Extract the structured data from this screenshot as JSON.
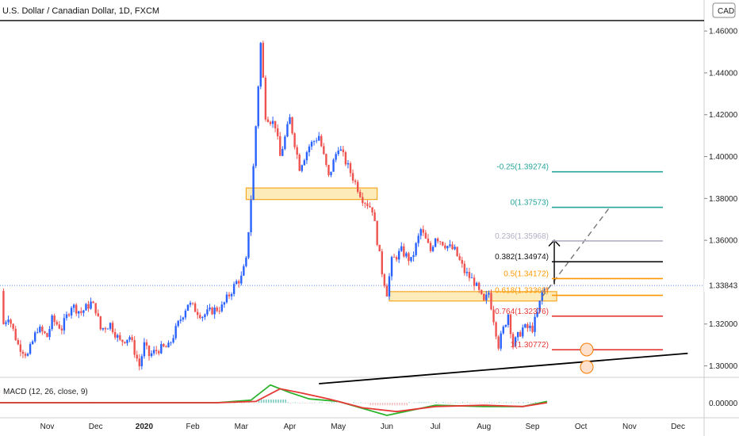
{
  "chart_data": {
    "type": "candlestick",
    "title": "U.S. Dollar / Canadian Dollar, 1D, FXCM",
    "currency_label": "CAD",
    "last_price": "1.33843",
    "y_ticks": [
      "1.46000",
      "1.44000",
      "1.42000",
      "1.40000",
      "1.38000",
      "1.36000",
      "1.34000",
      "1.32000",
      "1.30000"
    ],
    "x_ticks": [
      "Nov",
      "Dec",
      "2020",
      "Feb",
      "Mar",
      "Apr",
      "May",
      "Jun",
      "Jul",
      "Aug",
      "Sep",
      "Oct",
      "Nov",
      "Dec"
    ],
    "ylim": [
      1.2968,
      1.468
    ],
    "x_month_index": [
      0,
      1,
      2,
      3,
      4,
      5,
      6,
      7,
      8,
      9,
      10,
      11,
      12,
      13
    ],
    "candle_path": [
      [
        -1.2,
        1.3358
      ],
      [
        -0.9,
        1.32
      ],
      [
        -0.8,
        1.324
      ],
      [
        -0.6,
        1.31
      ],
      [
        -0.4,
        1.305
      ],
      [
        -0.2,
        1.318
      ],
      [
        0.0,
        1.314
      ],
      [
        0.1,
        1.322
      ],
      [
        0.3,
        1.318
      ],
      [
        0.5,
        1.329
      ],
      [
        0.7,
        1.3255
      ],
      [
        0.9,
        1.33
      ],
      [
        1.0,
        1.327
      ],
      [
        1.1,
        1.3175
      ],
      [
        1.3,
        1.32
      ],
      [
        1.5,
        1.3115
      ],
      [
        1.7,
        1.314
      ],
      [
        1.9,
        1.3
      ],
      [
        2.0,
        1.31
      ],
      [
        2.1,
        1.305
      ],
      [
        2.3,
        1.308
      ],
      [
        2.5,
        1.309
      ],
      [
        2.7,
        1.32
      ],
      [
        2.9,
        1.33
      ],
      [
        3.0,
        1.328
      ],
      [
        3.2,
        1.324
      ],
      [
        3.4,
        1.3265
      ],
      [
        3.6,
        1.328
      ],
      [
        3.7,
        1.332
      ],
      [
        3.9,
        1.34
      ],
      [
        4.0,
        1.342
      ],
      [
        4.1,
        1.35
      ],
      [
        4.25,
        1.395
      ],
      [
        4.4,
        1.454
      ],
      [
        4.5,
        1.42
      ],
      [
        4.7,
        1.415
      ],
      [
        4.8,
        1.4
      ],
      [
        5.0,
        1.418
      ],
      [
        5.2,
        1.395
      ],
      [
        5.4,
        1.405
      ],
      [
        5.6,
        1.41
      ],
      [
        5.8,
        1.39
      ],
      [
        6.0,
        1.405
      ],
      [
        6.2,
        1.395
      ],
      [
        6.3,
        1.39
      ],
      [
        6.5,
        1.38
      ],
      [
        6.7,
        1.375
      ],
      [
        6.8,
        1.36
      ],
      [
        6.9,
        1.345
      ],
      [
        7.0,
        1.335
      ],
      [
        7.1,
        1.35
      ],
      [
        7.3,
        1.355
      ],
      [
        7.5,
        1.35
      ],
      [
        7.7,
        1.365
      ],
      [
        7.9,
        1.355
      ],
      [
        8.0,
        1.362
      ],
      [
        8.2,
        1.358
      ],
      [
        8.4,
        1.355
      ],
      [
        8.6,
        1.345
      ],
      [
        8.8,
        1.34
      ],
      [
        9.0,
        1.33
      ],
      [
        9.1,
        1.335
      ],
      [
        9.3,
        1.31
      ],
      [
        9.5,
        1.325
      ],
      [
        9.6,
        1.31
      ],
      [
        9.8,
        1.318
      ],
      [
        10.0,
        1.318
      ],
      [
        10.1,
        1.325
      ],
      [
        10.2,
        1.335
      ],
      [
        10.3,
        1.3384
      ]
    ],
    "macd": {
      "label": "MACD (12, 26, close, 9)",
      "y_tick": "0.00000",
      "macd_line": [
        [
          -1.2,
          0.0
        ],
        [
          1,
          0.0
        ],
        [
          3.5,
          0.0
        ],
        [
          4.2,
          0.002
        ],
        [
          4.6,
          0.014
        ],
        [
          5.0,
          0.008
        ],
        [
          5.4,
          0.003
        ],
        [
          6,
          0.001
        ],
        [
          7.0,
          -0.01
        ],
        [
          7.5,
          -0.006
        ],
        [
          8,
          -0.002
        ],
        [
          9,
          -0.003
        ],
        [
          9.8,
          -0.003
        ],
        [
          10.3,
          0.001
        ]
      ],
      "signal_line": [
        [
          -1.2,
          0.0
        ],
        [
          1,
          0.0
        ],
        [
          3.5,
          0.0
        ],
        [
          4.3,
          0.001
        ],
        [
          4.8,
          0.011
        ],
        [
          5.2,
          0.008
        ],
        [
          5.8,
          0.003
        ],
        [
          6.5,
          -0.004
        ],
        [
          7.2,
          -0.007
        ],
        [
          8,
          -0.003
        ],
        [
          9,
          -0.002
        ],
        [
          9.8,
          -0.003
        ],
        [
          10.3,
          0.0
        ]
      ]
    },
    "zones": [
      {
        "x_from": 4.1,
        "x_to": 6.8,
        "y_from": 1.3795,
        "y_to": 1.385
      },
      {
        "x_from": 7.05,
        "x_to": 10.5,
        "y_from": 1.331,
        "y_to": 1.3355
      }
    ],
    "trend_line": {
      "x1": 5.6,
      "y1": 1.2915,
      "x2": 13.2,
      "y2": 1.306
    },
    "forecast_line": {
      "x1": 10.2,
      "y1": 1.333,
      "x2": 11.6,
      "y2": 1.376
    },
    "top_line_y": 1.465,
    "fib_levels": [
      {
        "label": "-0.25(1.39274)",
        "value": 1.39274,
        "color": "#26a69a",
        "x_from": 10.4
      },
      {
        "label": "0(1.37573)",
        "value": 1.37573,
        "color": "#26a69a",
        "x_from": 10.4
      },
      {
        "label": "0.236(1.35968)",
        "value": 1.35968,
        "color": "#b0b0c4",
        "x_from": 10.4
      },
      {
        "label": "0.382(1.34974)",
        "value": 1.34974,
        "color": "#111111",
        "x_from": 10.4
      },
      {
        "label": "0.5(1.34172)",
        "value": 1.34172,
        "color": "#ff9800",
        "x_from": 10.4
      },
      {
        "label": "0.618(1.33369)",
        "value": 1.33369,
        "color": "#ff9800",
        "x_from": 10.4
      },
      {
        "label": "0.764(1.32376)",
        "value": 1.32376,
        "color": "#e53935",
        "x_from": 10.4
      },
      {
        "label": "1(1.30772)",
        "value": 1.30772,
        "color": "#e53935",
        "x_from": 10.4
      }
    ],
    "colors": {
      "up": "#2962ff",
      "down": "#ef5350",
      "macd": "#2bb32b",
      "signal": "#e53935",
      "zone_fill": "#fde7a7",
      "zone_border": "#f5a623"
    }
  }
}
